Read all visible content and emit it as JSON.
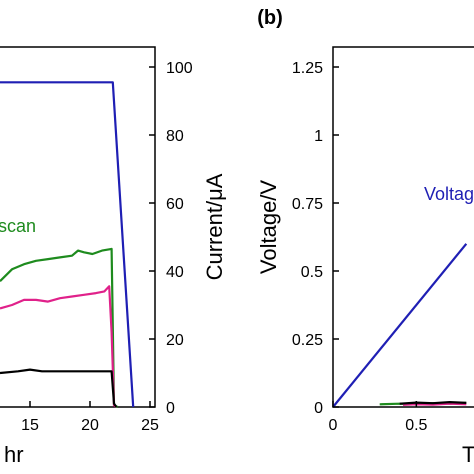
{
  "chart_data": [
    {
      "type": "line",
      "panel": "",
      "xlabel": "hr",
      "ylabel": "Current/μA",
      "xticks": [
        "15",
        "20",
        "25"
      ],
      "yticks": [
        "0",
        "20",
        "40",
        "60",
        "80",
        "100"
      ],
      "xlim": [
        12.5,
        25
      ],
      "ylim": [
        0,
        100
      ],
      "annotation": "scan",
      "series": [
        {
          "color": "#1f1fb4",
          "x": [
            12.5,
            21.9,
            23.6
          ],
          "y": [
            95.5,
            95.5,
            0
          ]
        },
        {
          "color": "#1e8b1e",
          "x": [
            12.5,
            13.5,
            14.5,
            15.5,
            16.5,
            17.5,
            18.5,
            19.0,
            19.5,
            20.2,
            21.0,
            21.8,
            22.0,
            22.3
          ],
          "y": [
            37,
            40.5,
            42,
            43,
            43.5,
            44,
            44.5,
            46,
            45.5,
            45,
            46,
            46.5,
            0.5,
            0
          ]
        },
        {
          "color": "#e0218a",
          "x": [
            12.5,
            13.5,
            14.5,
            15.5,
            16.5,
            17.5,
            18.5,
            19.5,
            20.5,
            21.2,
            21.6,
            21.8,
            22.0,
            22.2
          ],
          "y": [
            29,
            30,
            31.5,
            31.5,
            31,
            32,
            32.5,
            33,
            33.5,
            34,
            35.5,
            22,
            0.5,
            0
          ]
        },
        {
          "color": "#000000",
          "x": [
            12.5,
            14,
            15,
            16,
            17,
            18,
            19,
            20,
            21,
            21.8,
            22.0,
            22.2
          ],
          "y": [
            10,
            10.5,
            11,
            10.5,
            10.5,
            10.5,
            10.5,
            10.5,
            10.5,
            10.5,
            1,
            0
          ]
        }
      ]
    },
    {
      "type": "line",
      "panel": "(b)",
      "xlabel": "T",
      "ylabel": "Voltage/V",
      "xticks": [
        "0",
        "0.5"
      ],
      "yticks": [
        "0",
        "0.25",
        "0.5",
        "0.75",
        "1",
        "1.25"
      ],
      "xlim": [
        0,
        0.9
      ],
      "ylim": [
        0,
        1.25
      ],
      "annotation": "Voltag",
      "series": [
        {
          "color": "#1f1fb4",
          "x": [
            0,
            0.8
          ],
          "y": [
            0,
            0.6
          ]
        },
        {
          "color": "#1e8b1e",
          "x": [
            0.28,
            0.4,
            0.5,
            0.6,
            0.7,
            0.8
          ],
          "y": [
            0.01,
            0.012,
            0.01,
            0.014,
            0.012,
            0.015
          ]
        },
        {
          "color": "#e0218a",
          "x": [
            0.42,
            0.5,
            0.6,
            0.7,
            0.8
          ],
          "y": [
            0.008,
            0.01,
            0.009,
            0.012,
            0.01
          ]
        },
        {
          "color": "#000000",
          "x": [
            0.4,
            0.5,
            0.6,
            0.7,
            0.8
          ],
          "y": [
            0.012,
            0.016,
            0.014,
            0.018,
            0.015
          ]
        }
      ]
    }
  ]
}
